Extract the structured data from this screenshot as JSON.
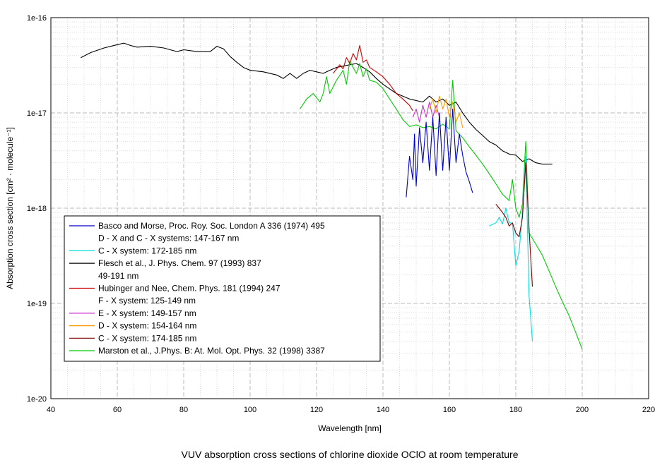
{
  "caption": "VUV absorption cross sections of chlorine dioxide OClO at room temperature",
  "chart_data": {
    "type": "line",
    "title": "",
    "xlabel": "Wavelength [nm]",
    "ylabel": "Absorption cross section [cm² · molecule⁻¹]",
    "xlim": [
      40,
      220
    ],
    "ylim": [
      1e-20,
      1e-16
    ],
    "yscale": "log",
    "grid": true,
    "legend_position": "bottom-left",
    "x_ticks": [
      "40",
      "60",
      "80",
      "100",
      "120",
      "140",
      "160",
      "180",
      "200",
      "220"
    ],
    "y_ticks": [
      "1e-20",
      "1e-19",
      "1e-18",
      "1e-17",
      "1e-16"
    ],
    "legend": [
      {
        "color": "#0000cc",
        "text": "Basco and Morse,  Proc. Roy. Soc. London A 336 (1974) 495"
      },
      {
        "color": null,
        "text": "D - X and C - X systems: 147-167 nm"
      },
      {
        "color": "#00e0e0",
        "text": "C  - X system: 172-185 nm"
      },
      {
        "color": "#000000",
        "text": "Flesch et al., J. Phys. Chem. 97 (1993) 837"
      },
      {
        "color": null,
        "text": "49-191 nm"
      },
      {
        "color": "#cc0000",
        "text": "Hubinger and Nee,  Chem. Phys. 181 (1994) 247"
      },
      {
        "color": null,
        "text": "F - X system: 125-149 nm"
      },
      {
        "color": "#cc33cc",
        "text": "E - X system: 149-157 nm"
      },
      {
        "color": "#ff9900",
        "text": "D - X system: 154-164 nm"
      },
      {
        "color": "#800000",
        "text": "C - X system: 174-185 nm"
      },
      {
        "color": "#00cc00",
        "text": "Marston et al., J.Phys. B: At. Mol. Opt. Phys. 32 (1998) 3387"
      }
    ],
    "series": [
      {
        "color": "#000000",
        "x": [
          49,
          52,
          56,
          60,
          62,
          64,
          66,
          70,
          74,
          78,
          80,
          84,
          88,
          90,
          92,
          94,
          96,
          98,
          100,
          104,
          108,
          110,
          112,
          114,
          116,
          118,
          120,
          122,
          124,
          126,
          128,
          130,
          132,
          134,
          136,
          138,
          140,
          144,
          148,
          152,
          154,
          156,
          158,
          160,
          162,
          164,
          166,
          168,
          170,
          172,
          174,
          176,
          178,
          180,
          182,
          184,
          186,
          188,
          190,
          191
        ],
        "y": [
          3.8e-17,
          4.3e-17,
          4.8e-17,
          5.2e-17,
          5.4e-17,
          5.1e-17,
          4.9e-17,
          5e-17,
          4.8e-17,
          4.4e-17,
          4.6e-17,
          4.4e-17,
          4.4e-17,
          5e-17,
          4.7e-17,
          3.9e-17,
          3.4e-17,
          3e-17,
          2.8e-17,
          2.7e-17,
          2.5e-17,
          2.3e-17,
          2.6e-17,
          2.3e-17,
          2.6e-17,
          2.8e-17,
          2.7e-17,
          2.6e-17,
          2.8e-17,
          3e-17,
          3.1e-17,
          3.2e-17,
          3.3e-17,
          3e-17,
          2.7e-17,
          2.3e-17,
          2e-17,
          1.6e-17,
          1.4e-17,
          1.3e-17,
          1.5e-17,
          1.3e-17,
          1.4e-17,
          1.2e-17,
          1.3e-17,
          1e-17,
          8e-18,
          6.7e-18,
          5.8e-18,
          5e-18,
          4.6e-18,
          4e-18,
          3.7e-18,
          3.6e-18,
          3.1e-18,
          3.3e-18,
          3e-18,
          2.9e-18,
          2.9e-18,
          2.9e-18
        ]
      },
      {
        "color": "#00cc00",
        "x": [
          115,
          117,
          119,
          121,
          122,
          123,
          124,
          126,
          128,
          129,
          130,
          132,
          133,
          134,
          135,
          136,
          138,
          140,
          142,
          144,
          146,
          148,
          150,
          152,
          154,
          156,
          158,
          160,
          161,
          162,
          164,
          166,
          168,
          170,
          172,
          174,
          176,
          178,
          179,
          180,
          181,
          182,
          183,
          184,
          186,
          188,
          190,
          192,
          194,
          196,
          198,
          200
        ],
        "y": [
          1.1e-17,
          1.4e-17,
          1.6e-17,
          1.3e-17,
          1.6e-17,
          2.4e-17,
          1.6e-17,
          2.2e-17,
          2.8e-17,
          2e-17,
          3.5e-17,
          2.6e-17,
          3.3e-17,
          2.4e-17,
          2.9e-17,
          2.2e-17,
          2.1e-17,
          1.8e-17,
          1.4e-17,
          1.1e-17,
          8.5e-18,
          7.2e-18,
          7.5e-18,
          7e-18,
          7.2e-18,
          6.8e-18,
          7.6e-18,
          6.8e-18,
          2.2e-17,
          6.5e-18,
          5.5e-18,
          4.4e-18,
          3.6e-18,
          2.9e-18,
          2.3e-18,
          1.8e-18,
          1.4e-18,
          1.2e-18,
          2e-18,
          1e-18,
          8e-19,
          1.1e-18,
          5e-18,
          5.5e-19,
          4.2e-19,
          3.2e-19,
          2.2e-19,
          1.5e-19,
          1.05e-19,
          7.5e-20,
          5e-20,
          3.3e-20
        ]
      },
      {
        "color": "#cc0000",
        "x": [
          125,
          127,
          128,
          129,
          130,
          131,
          132,
          133,
          134,
          135,
          136,
          138,
          140,
          142,
          144,
          146,
          148,
          149
        ],
        "y": [
          2.6e-17,
          3.2e-17,
          2.9e-17,
          3.8e-17,
          3.3e-17,
          4.2e-17,
          3.6e-17,
          5.1e-17,
          3.4e-17,
          3.6e-17,
          3e-17,
          2.7e-17,
          2.4e-17,
          2e-17,
          1.6e-17,
          1.4e-17,
          1.2e-17,
          1.05e-17
        ]
      },
      {
        "color": "#cc33cc",
        "x": [
          149,
          150,
          151,
          152,
          153,
          154,
          155,
          156,
          157
        ],
        "y": [
          9e-18,
          1.1e-17,
          8e-18,
          1.2e-17,
          9e-18,
          1.3e-17,
          9e-18,
          1.2e-17,
          9e-18
        ]
      },
      {
        "color": "#ff9900",
        "x": [
          154,
          155,
          156,
          157,
          158,
          159,
          160,
          161,
          162,
          163,
          164
        ],
        "y": [
          1.1e-17,
          1.4e-17,
          1e-17,
          1.5e-17,
          1.1e-17,
          1.4e-17,
          9e-18,
          1.3e-17,
          8e-18,
          1e-17,
          7e-18
        ]
      },
      {
        "color": "#0000cc",
        "x": [
          147,
          148,
          149,
          149.5,
          150,
          151,
          152,
          153,
          154,
          155,
          156,
          157,
          158,
          159,
          160,
          161,
          162,
          163,
          164,
          165,
          166,
          167
        ],
        "y": [
          1.3e-18,
          3.5e-18,
          2e-18,
          6e-18,
          1.7e-18,
          7e-18,
          3e-18,
          8e-18,
          2.5e-18,
          9e-18,
          2.2e-18,
          1e-17,
          2.5e-18,
          9e-18,
          2.5e-18,
          1.1e-17,
          3e-18,
          6e-18,
          3.6e-18,
          2.4e-18,
          1.9e-18,
          1.45e-18
        ]
      },
      {
        "color": "#00e0e0",
        "x": [
          172,
          174,
          175,
          176,
          177,
          178,
          179,
          180,
          181,
          182,
          183,
          184,
          185
        ],
        "y": [
          6.5e-19,
          7e-19,
          8e-19,
          6.8e-19,
          1e-18,
          7e-19,
          7e-19,
          2.5e-19,
          3.5e-19,
          9e-19,
          3.5e-18,
          1.2e-19,
          4e-20
        ]
      },
      {
        "color": "#800000",
        "x": [
          174,
          175,
          176,
          177,
          178,
          179,
          180,
          181,
          182,
          183,
          184,
          185
        ],
        "y": [
          1.1e-18,
          1e-18,
          9e-19,
          8e-19,
          6.5e-19,
          7e-19,
          5.5e-19,
          5e-19,
          8e-19,
          3e-18,
          6e-19,
          1.5e-19
        ]
      }
    ]
  }
}
